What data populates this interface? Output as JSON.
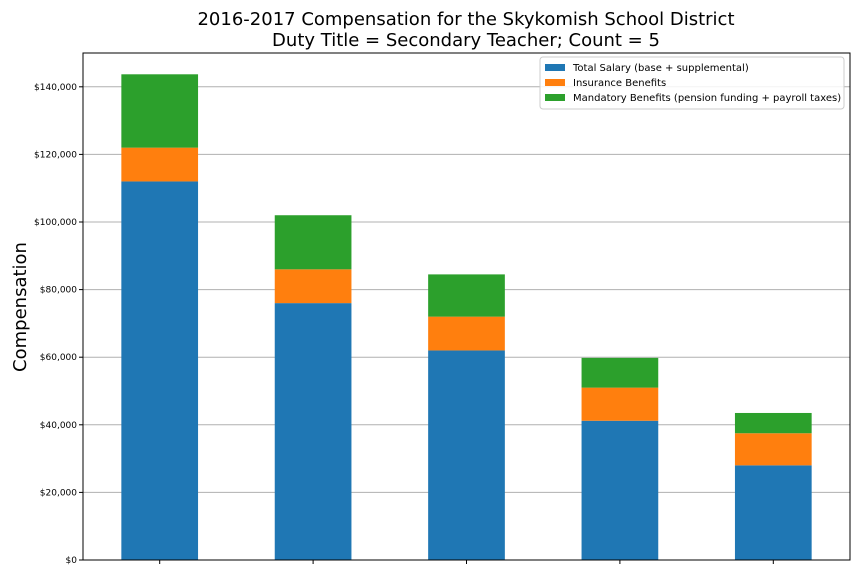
{
  "chart_data": {
    "type": "bar",
    "stacked": true,
    "title": [
      "2016-2017 Compensation for the Skykomish School District",
      "Duty Title = Secondary Teacher; Count = 5"
    ],
    "ylabel": "Compensation",
    "xlabel": "",
    "categories": [
      "",
      "",
      "",
      "",
      ""
    ],
    "ylim": [
      0,
      150000
    ],
    "yticks": [
      0,
      20000,
      40000,
      60000,
      80000,
      100000,
      120000,
      140000
    ],
    "ytick_labels": [
      "$0",
      "$20,000",
      "$40,000",
      "$60,000",
      "$80,000",
      "$100,000",
      "$120,000",
      "$140,000"
    ],
    "grid": "horizontal",
    "legend_position": "top-right",
    "series": [
      {
        "name": "Total Salary (base + supplemental)",
        "color": "#1f77b4",
        "values": [
          112000,
          76000,
          62000,
          41200,
          28000
        ]
      },
      {
        "name": "Insurance Benefits",
        "color": "#ff7f0e",
        "values": [
          10000,
          10000,
          10000,
          9800,
          9500
        ]
      },
      {
        "name": "Mandatory Benefits (pension funding + payroll taxes)",
        "color": "#2ca02c",
        "values": [
          21700,
          16000,
          12500,
          8800,
          6000
        ]
      }
    ]
  }
}
